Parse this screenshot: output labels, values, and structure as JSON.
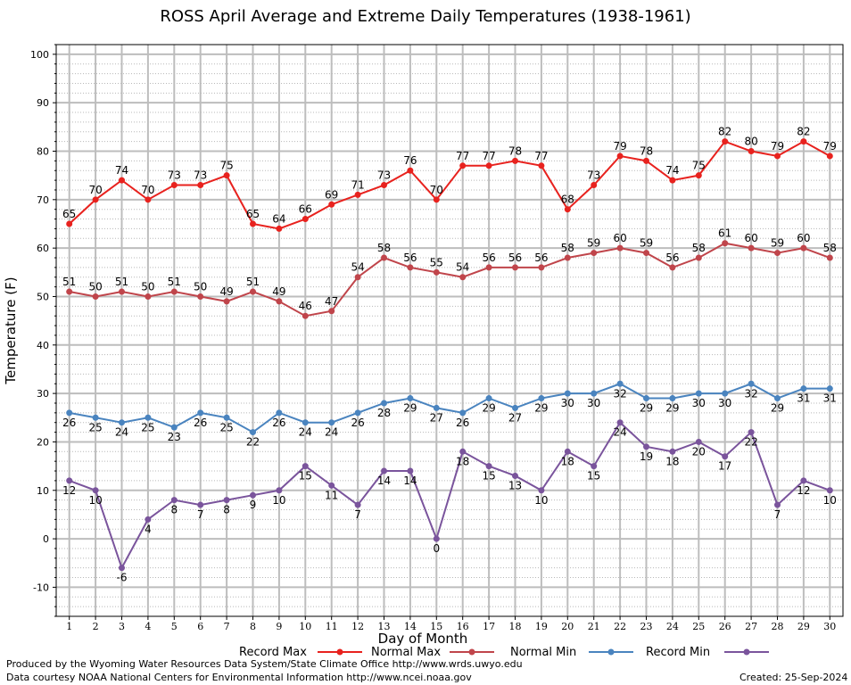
{
  "chart_data": {
    "type": "line",
    "title": "ROSS April Average and Extreme Daily Temperatures (1938-1961)",
    "xlabel": "Day of Month",
    "ylabel": "Temperature (F)",
    "x": [
      1,
      2,
      3,
      4,
      5,
      6,
      7,
      8,
      9,
      10,
      11,
      12,
      13,
      14,
      15,
      16,
      17,
      18,
      19,
      20,
      21,
      22,
      23,
      24,
      25,
      26,
      27,
      28,
      29,
      30
    ],
    "xlim": [
      0.5,
      30.5
    ],
    "ylim": [
      -16,
      102
    ],
    "yticks": [
      -10,
      0,
      10,
      20,
      30,
      40,
      50,
      60,
      70,
      80,
      90,
      100
    ],
    "grid": true,
    "legend": "bottom",
    "series": [
      {
        "name": "Record Max",
        "color": "#e8221e",
        "values": [
          65,
          70,
          74,
          70,
          73,
          73,
          75,
          65,
          64,
          66,
          69,
          71,
          73,
          76,
          70,
          77,
          77,
          78,
          77,
          68,
          73,
          79,
          78,
          74,
          75,
          82,
          80,
          79,
          82,
          79
        ]
      },
      {
        "name": "Normal Max",
        "color": "#c0454b",
        "values": [
          51,
          50,
          51,
          50,
          51,
          50,
          49,
          51,
          49,
          46,
          47,
          54,
          58,
          56,
          55,
          54,
          56,
          56,
          56,
          58,
          59,
          60,
          59,
          56,
          58,
          61,
          60,
          59,
          60,
          58
        ]
      },
      {
        "name": "Normal Min",
        "color": "#4a84bf",
        "values": [
          26,
          25,
          24,
          25,
          23,
          26,
          25,
          22,
          26,
          24,
          24,
          26,
          28,
          29,
          27,
          26,
          29,
          27,
          29,
          30,
          30,
          32,
          29,
          29,
          30,
          30,
          32,
          29,
          31,
          31
        ]
      },
      {
        "name": "Record Min",
        "color": "#7a549c",
        "values": [
          12,
          10,
          -6,
          4,
          8,
          7,
          8,
          9,
          10,
          15,
          11,
          7,
          14,
          14,
          0,
          18,
          15,
          13,
          10,
          18,
          15,
          24,
          19,
          18,
          20,
          17,
          22,
          7,
          12,
          10
        ]
      }
    ]
  },
  "footer": {
    "left_line1": "Produced by the Wyoming Water Resources Data System/State Climate Office http://www.wrds.uwyo.edu",
    "left_line2": "Data courtesy NOAA National Centers for Environmental Information http://www.ncei.noaa.gov",
    "created": "Created:  25-Sep-2024"
  }
}
